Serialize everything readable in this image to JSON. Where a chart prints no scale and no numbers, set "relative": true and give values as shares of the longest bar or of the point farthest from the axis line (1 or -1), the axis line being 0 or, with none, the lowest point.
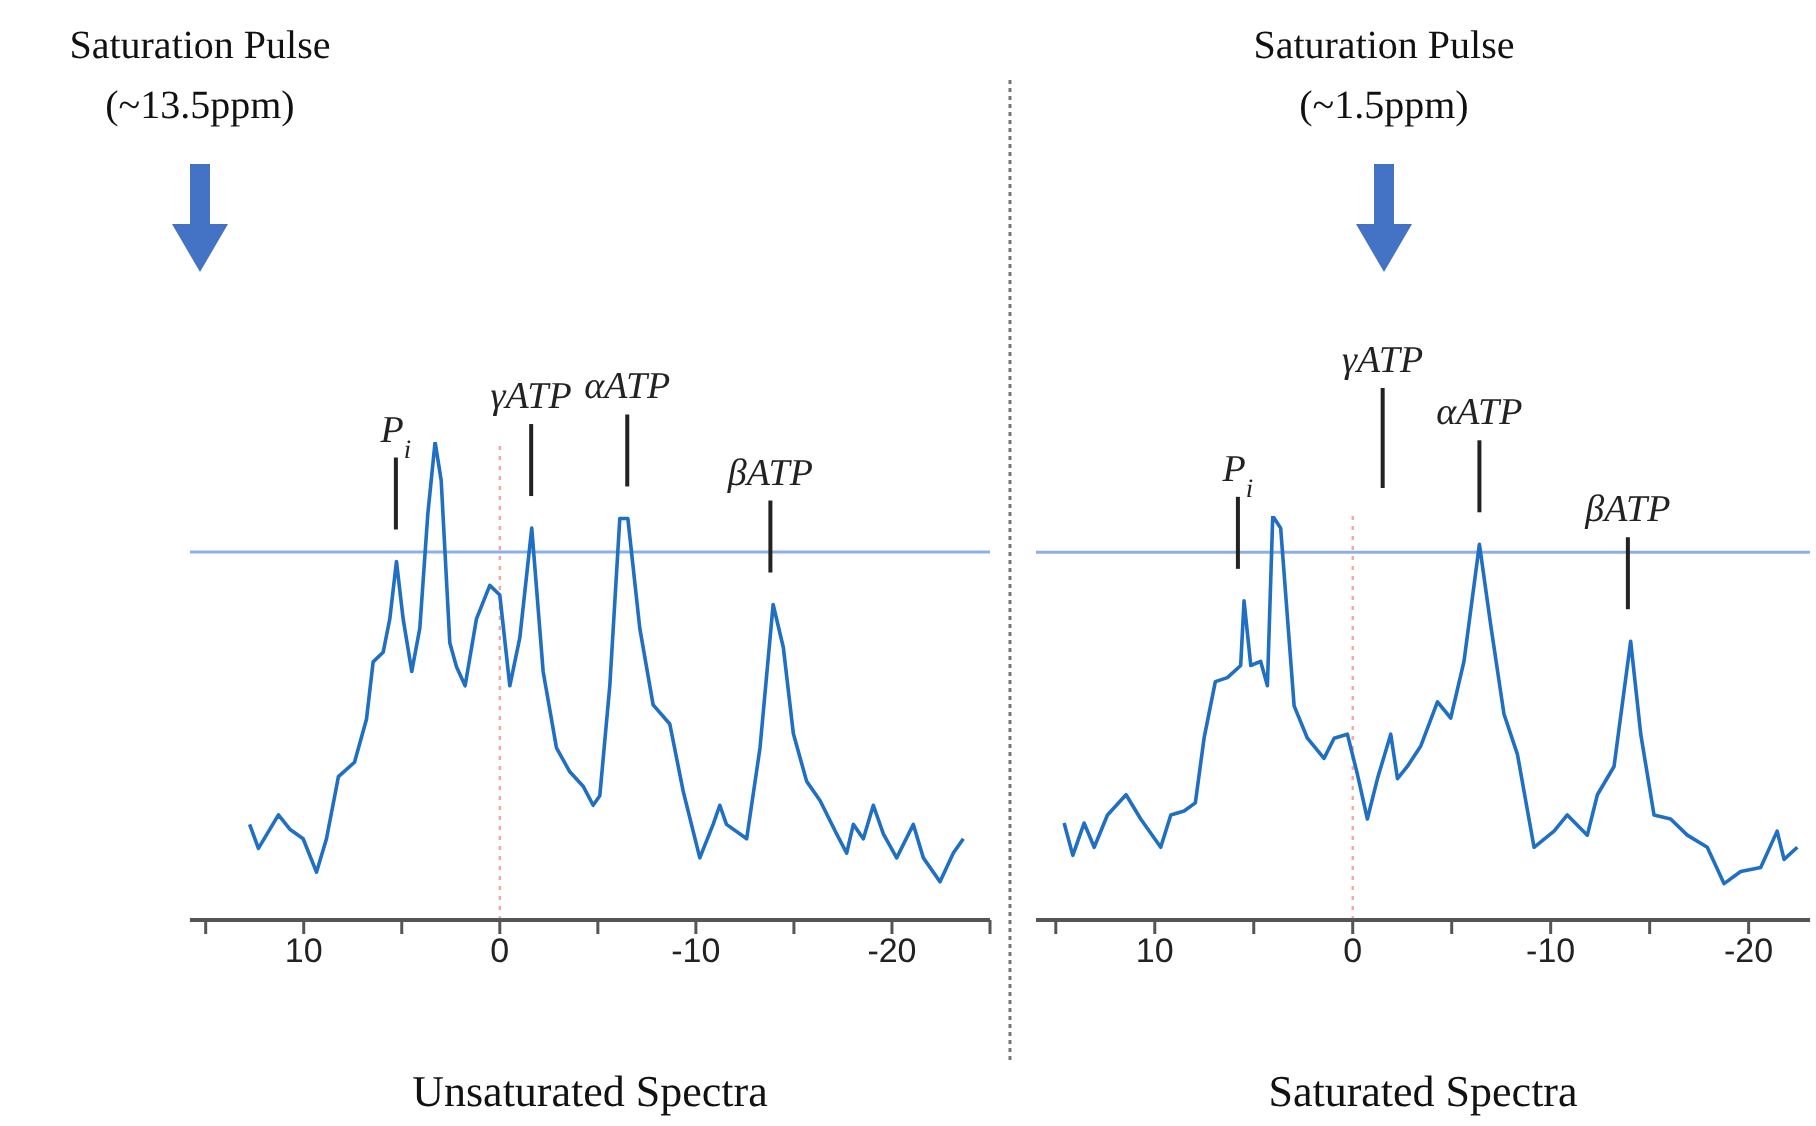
{
  "chart_data": [
    {
      "type": "line",
      "title": "Saturation Pulse (~13.5ppm)",
      "xlabel": "Unsaturated Spectra",
      "relative": true,
      "x": [
        12.76,
        12.31,
        11.29,
        10.71,
        10.03,
        9.35,
        8.84,
        8.23,
        7.41,
        6.8,
        6.46,
        5.95,
        5.61,
        5.27,
        4.93,
        4.49,
        4.08,
        3.67,
        3.3,
        2.99,
        2.55,
        2.21,
        1.77,
        1.19,
        0.51,
        0,
        -0.51,
        -1.02,
        -1.63,
        -2.21,
        -2.89,
        -3.57,
        -4.25,
        -4.76,
        -5.1,
        -5.61,
        -6.12,
        -6.53,
        -7.14,
        -7.82,
        -8.67,
        -9.35,
        -10.2,
        -10.88,
        -11.22,
        -11.56,
        -12.59,
        -13.27,
        -13.94,
        -14.46,
        -14.97,
        -15.65,
        -16.33,
        -17.18,
        -17.69,
        -18.03,
        -18.54,
        -19.05,
        -19.56,
        -20.24,
        -21.09,
        -21.6,
        -22.45,
        -23.13,
        -23.64
      ],
      "series": [
        {
          "color": "#1f6fc4",
          "values": [
            0.2,
            0.15,
            0.22,
            0.19,
            0.17,
            0.1,
            0.17,
            0.3,
            0.33,
            0.42,
            0.54,
            0.56,
            0.63,
            0.75,
            0.63,
            0.52,
            0.61,
            0.85,
            1,
            0.92,
            0.58,
            0.53,
            0.49,
            0.63,
            0.7,
            0.68,
            0.49,
            0.59,
            0.82,
            0.52,
            0.36,
            0.31,
            0.28,
            0.24,
            0.26,
            0.49,
            0.84,
            0.84,
            0.61,
            0.45,
            0.41,
            0.27,
            0.13,
            0.2,
            0.24,
            0.2,
            0.17,
            0.36,
            0.66,
            0.57,
            0.39,
            0.29,
            0.25,
            0.18,
            0.14,
            0.2,
            0.17,
            0.24,
            0.18,
            0.13,
            0.2,
            0.13,
            0.08,
            0.14,
            0.17
          ]
        }
      ],
      "xlim": [
        15.8,
        -25
      ],
      "xticks": [
        {
          "value": 15,
          "label": null
        },
        10,
        {
          "value": 5,
          "label": null
        },
        0,
        {
          "value": -5,
          "label": null
        },
        -10,
        {
          "value": -15,
          "label": null
        },
        -20,
        {
          "value": -25,
          "label": null
        }
      ],
      "ref_lines": [
        {
          "axis": "y",
          "value": 0.77,
          "color": "#8eb0e6"
        },
        {
          "axis": "x",
          "value": 0,
          "color": "#f2a7a7",
          "line_style": "dotted"
        }
      ],
      "annotations": [
        {
          "text": "P$_{i}$",
          "x": 5.3
        },
        {
          "text": "γATP",
          "x": -1.6
        },
        {
          "text": "αATP",
          "x": -6.5
        },
        {
          "text": "βATP",
          "x": -13.8
        }
      ]
    },
    {
      "type": "line",
      "title": "Saturation Pulse (~1.5ppm)",
      "xlabel": "Saturated Spectra",
      "relative": true,
      "x": [
        14.58,
        14.14,
        13.57,
        13.06,
        12.39,
        11.45,
        10.71,
        9.7,
        9.19,
        8.52,
        7.95,
        7.51,
        6.94,
        6.33,
        5.66,
        5.49,
        5.15,
        4.65,
        4.31,
        4.04,
        3.64,
        2.96,
        2.29,
        1.45,
        0.94,
        0.27,
        -0.24,
        -0.74,
        -1.25,
        -1.92,
        -2.26,
        -2.76,
        -3.43,
        -4.28,
        -4.95,
        -5.62,
        -6.4,
        -6.97,
        -7.64,
        -8.32,
        -9.16,
        -10.17,
        -10.84,
        -11.85,
        -12.36,
        -13.2,
        -14.04,
        -14.55,
        -15.22,
        -16.06,
        -16.9,
        -17.91,
        -18.76,
        -19.6,
        -20.61,
        -21.44,
        -21.79,
        -22.46
      ],
      "series": [
        {
          "color": "#1f6fc4",
          "values": [
            0.24,
            0.16,
            0.24,
            0.18,
            0.26,
            0.31,
            0.25,
            0.18,
            0.26,
            0.27,
            0.29,
            0.45,
            0.59,
            0.6,
            0.63,
            0.79,
            0.63,
            0.64,
            0.58,
            1,
            0.97,
            0.53,
            0.45,
            0.4,
            0.45,
            0.46,
            0.36,
            0.25,
            0.35,
            0.46,
            0.35,
            0.38,
            0.43,
            0.54,
            0.5,
            0.64,
            0.93,
            0.73,
            0.51,
            0.41,
            0.18,
            0.22,
            0.26,
            0.21,
            0.31,
            0.38,
            0.69,
            0.46,
            0.26,
            0.25,
            0.21,
            0.18,
            0.09,
            0.12,
            0.13,
            0.22,
            0.15,
            0.18
          ]
        }
      ],
      "xlim": [
        16,
        -23.1
      ],
      "xticks": [
        {
          "value": 15,
          "label": null
        },
        10,
        {
          "value": 5,
          "label": null
        },
        0,
        {
          "value": -5,
          "label": null
        },
        -10,
        {
          "value": -15,
          "label": null
        },
        -20
      ],
      "ref_lines": [
        {
          "axis": "y",
          "value": 0.91,
          "color": "#8eb0e6"
        },
        {
          "axis": "x",
          "value": 0,
          "color": "#f2a7a7",
          "line_style": "dotted"
        }
      ],
      "annotations": [
        {
          "text": "P$_{i}$",
          "x": 5.8
        },
        "γATP",
        {
          "text": "αATP",
          "x": -6.4
        },
        {
          "text": "βATP",
          "x": -13.9
        }
      ]
    }
  ]
}
